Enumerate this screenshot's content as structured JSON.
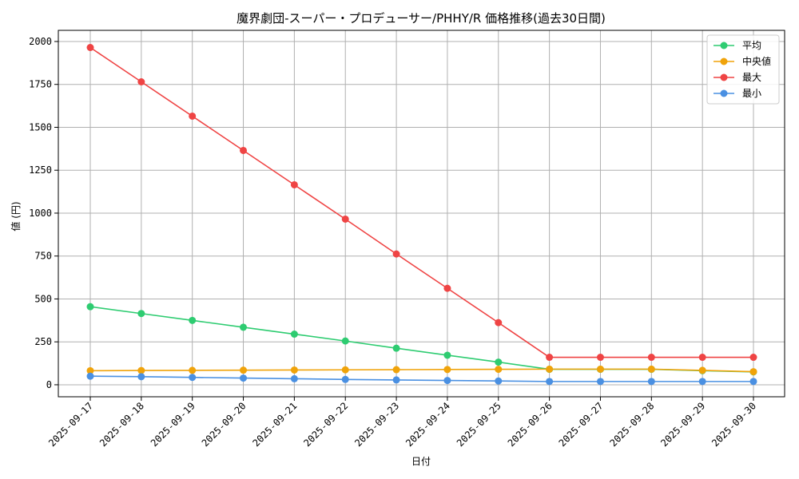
{
  "chart_data": {
    "type": "line",
    "title": "魔界劇団-スーパー・プロデューサー/PHHY/R 価格推移(過去30日間)",
    "xlabel": "日付",
    "ylabel": "値 (円)",
    "ylim": [
      -70,
      2065
    ],
    "yticks": [
      0,
      250,
      500,
      750,
      1000,
      1250,
      1500,
      1750,
      2000
    ],
    "grid": true,
    "legend_position": "top-right",
    "categories": [
      "2025-09-17",
      "2025-09-18",
      "2025-09-19",
      "2025-09-20",
      "2025-09-21",
      "2025-09-22",
      "2025-09-23",
      "2025-09-24",
      "2025-09-25",
      "2025-09-26",
      "2025-09-27",
      "2025-09-28",
      "2025-09-29",
      "2025-09-30"
    ],
    "series": [
      {
        "name": "平均",
        "color": "#2ecc71",
        "values": [
          455,
          415,
          375,
          335,
          295,
          255,
          213,
          172,
          132,
          90,
          90,
          90,
          82,
          75
        ]
      },
      {
        "name": "中央値",
        "color": "#f0a30a",
        "values": [
          82,
          83,
          84,
          85,
          86,
          87,
          88,
          89,
          90,
          91,
          91,
          91,
          84,
          76
        ]
      },
      {
        "name": "最大",
        "color": "#ef4444",
        "values": [
          1965,
          1765,
          1565,
          1365,
          1165,
          965,
          762,
          562,
          362,
          160,
          160,
          160,
          160,
          160
        ]
      },
      {
        "name": "最小",
        "color": "#4a90e2",
        "values": [
          50,
          47,
          43,
          39,
          35,
          31,
          28,
          25,
          22,
          19,
          19,
          19,
          19,
          19
        ]
      }
    ]
  }
}
